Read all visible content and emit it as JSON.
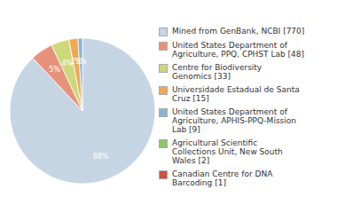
{
  "chart_data": {
    "type": "pie",
    "categories": [
      "Mined from GenBank, NCBI [770]",
      "United States Department of\nAgriculture, PPQ, CPHST Lab [48]",
      "Centre for Biodiversity\nGenomics [33]",
      "Universidade Estadual de Santa\nCruz [15]",
      "United States Department of\nAgriculture, APHIS-PPQ-Mission\nLab [9]",
      "Agricultural Scientific\nCollections Unit, New South\nWales [2]",
      "Canadian Centre for DNA\nBarcoding [1]"
    ],
    "values": [
      88,
      5,
      4,
      2,
      1,
      0,
      0
    ],
    "value_labels": [
      "88%",
      "5%",
      "4%",
      "2%",
      "1%",
      null,
      null
    ],
    "colors": [
      "#c5d5e4",
      "#e8917a",
      "#cdd87a",
      "#f0a855",
      "#8ab4d4",
      "#8ec46a",
      "#d05040"
    ],
    "data_labels": true,
    "legend": "right"
  }
}
